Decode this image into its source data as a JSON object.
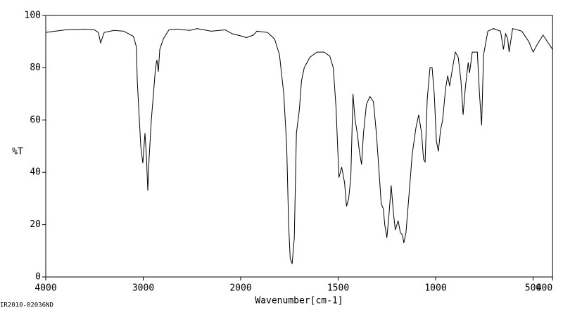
{
  "chart_data": {
    "type": "line",
    "ylabel": "%T",
    "xlabel": "Wavenumber[cm-1]",
    "footnote": "IR2010-02036ND",
    "xlim": [
      4000,
      400
    ],
    "xticks": [
      4000,
      3000,
      2000,
      1500,
      1000,
      500,
      400
    ],
    "ylim": [
      0,
      100
    ],
    "yticks": [
      0,
      20,
      40,
      60,
      80,
      100
    ],
    "series": [
      {
        "color": "#000000",
        "x": [
          4000,
          3800,
          3600,
          3500,
          3460,
          3437,
          3400,
          3300,
          3200,
          3150,
          3100,
          3070,
          3061,
          3025,
          3004,
          2982,
          2967,
          2953,
          2940,
          2917,
          2895,
          2874,
          2859,
          2845,
          2830,
          2794,
          2736,
          2664,
          2520,
          2448,
          2303,
          2159,
          2087,
          1989,
          1971,
          1935,
          1917,
          1862,
          1826,
          1801,
          1779,
          1764,
          1754,
          1746,
          1736,
          1725,
          1714,
          1699,
          1688,
          1674,
          1645,
          1609,
          1572,
          1543,
          1525,
          1511,
          1496,
          1482,
          1467,
          1457,
          1446,
          1435,
          1424,
          1413,
          1402,
          1391,
          1380,
          1370,
          1355,
          1337,
          1319,
          1304,
          1290,
          1279,
          1268,
          1261,
          1250,
          1239,
          1228,
          1217,
          1207,
          1192,
          1181,
          1170,
          1163,
          1152,
          1138,
          1120,
          1101,
          1087,
          1072,
          1062,
          1054,
          1043,
          1029,
          1018,
          1007,
          996,
          986,
          975,
          964,
          949,
          938,
          928,
          913,
          899,
          884,
          870,
          859,
          848,
          833,
          826,
          812,
          786,
          775,
          764,
          754,
          732,
          703,
          667,
          652,
          641,
          630,
          623,
          605,
          558,
          522,
          500,
          478,
          449,
          400
        ],
        "values": [
          93.5,
          94.5,
          94.8,
          94.5,
          93.5,
          89.5,
          93.5,
          94.3,
          94,
          93,
          92,
          88,
          75,
          50,
          43.5,
          55,
          46,
          33,
          45,
          60,
          70,
          80,
          83,
          78.5,
          87,
          91,
          94.5,
          94.8,
          94.3,
          95,
          94,
          94.5,
          93,
          92,
          91.5,
          92.5,
          94,
          93.5,
          91,
          85,
          70,
          50,
          20,
          7,
          5,
          15,
          55,
          64,
          75,
          80,
          84,
          86,
          86,
          84.5,
          80,
          65,
          38,
          42,
          36,
          27,
          30,
          38,
          70,
          60,
          55,
          48,
          43,
          55,
          66,
          69,
          67,
          55,
          40,
          28,
          26,
          20,
          15,
          24,
          35,
          25,
          18,
          21.5,
          17,
          16,
          13,
          17,
          30,
          47,
          57,
          62,
          55,
          45,
          44,
          68,
          80,
          80,
          70,
          52,
          48,
          56,
          60,
          72,
          77,
          73,
          80,
          86,
          84,
          75,
          62,
          72,
          82,
          78,
          86,
          86,
          70,
          58,
          85,
          94,
          95,
          94,
          87,
          93,
          91,
          86,
          95,
          94,
          90,
          86,
          89,
          92.5,
          87
        ]
      }
    ]
  }
}
